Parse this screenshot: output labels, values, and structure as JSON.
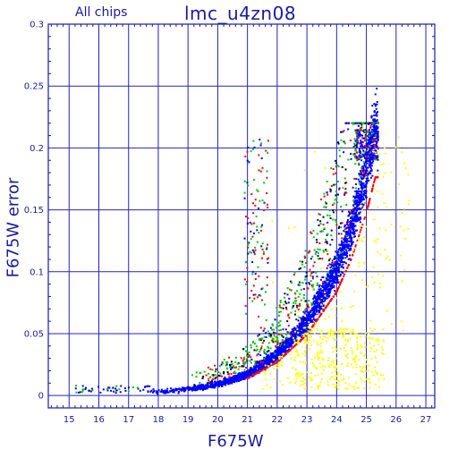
{
  "chart_data": {
    "type": "scatter",
    "title": "lmc_u4zn08",
    "subtitle": "All chips",
    "xlabel": "F675W",
    "ylabel": "F675W error",
    "xlim": [
      14.3,
      27.3
    ],
    "ylim": [
      -0.01,
      0.3
    ],
    "x_ticks": [
      "15",
      "16",
      "17",
      "18",
      "19",
      "20",
      "21",
      "22",
      "23",
      "24",
      "25",
      "26",
      "27"
    ],
    "y_ticks": [
      "0",
      "0.05",
      "0.1",
      "0.15",
      "0.2",
      "0.25",
      "0.3"
    ],
    "grid": true,
    "colors": {
      "axis": "#1a1aa6",
      "grid": "#2222cc",
      "main_sequence": "#0000ff",
      "edge": "#ff0000",
      "secondary": "#00cc00",
      "outliers": "#ffff00",
      "dark": "#000033"
    },
    "series": [
      {
        "color_key": "main_sequence",
        "trend": "error rises exponentially with magnitude",
        "x_range": [
          14.9,
          25.4
        ],
        "y_approx": [
          [
            15,
            0.002
          ],
          [
            16,
            0.002
          ],
          [
            17,
            0.002
          ],
          [
            18,
            0.003
          ],
          [
            19,
            0.005
          ],
          [
            20,
            0.009
          ],
          [
            21,
            0.017
          ],
          [
            22,
            0.033
          ],
          [
            23,
            0.06
          ],
          [
            24,
            0.102
          ],
          [
            24.5,
            0.135
          ],
          [
            25,
            0.18
          ],
          [
            25.3,
            0.215
          ]
        ]
      },
      {
        "color_key": "outliers",
        "description": "faint sources below the main sequence",
        "x_range": [
          22.5,
          26.6
        ],
        "y_range": [
          0.005,
          0.2
        ]
      }
    ]
  }
}
